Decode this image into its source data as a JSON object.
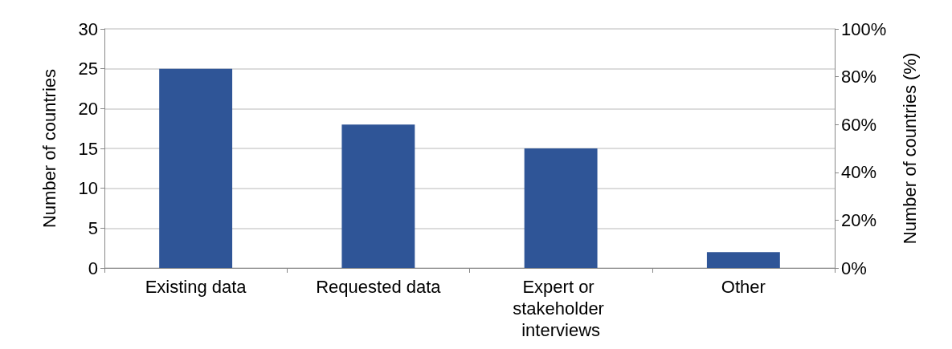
{
  "chart_data": {
    "type": "bar",
    "ylabel": "Number of countries",
    "y2label": "Number of countries (%)",
    "categories": [
      "Existing data",
      "Requested data",
      "Expert or stakeholder interviews",
      "Other"
    ],
    "series": [
      {
        "color": "#2f5597",
        "values": [
          25,
          18,
          15,
          2
        ]
      }
    ],
    "ylim": [
      0,
      30
    ],
    "yticks": [
      0,
      5,
      10,
      15,
      20,
      25,
      30
    ],
    "y2lim": [
      0,
      100
    ],
    "y2ticks": [
      {
        "value": 0,
        "label": "0%"
      },
      {
        "value": 20,
        "label": "20%"
      },
      {
        "value": 40,
        "label": "40%"
      },
      {
        "value": 60,
        "label": "60%"
      },
      {
        "value": 80,
        "label": "80%"
      },
      {
        "value": 100,
        "label": "100%"
      }
    ],
    "grid": "y"
  }
}
